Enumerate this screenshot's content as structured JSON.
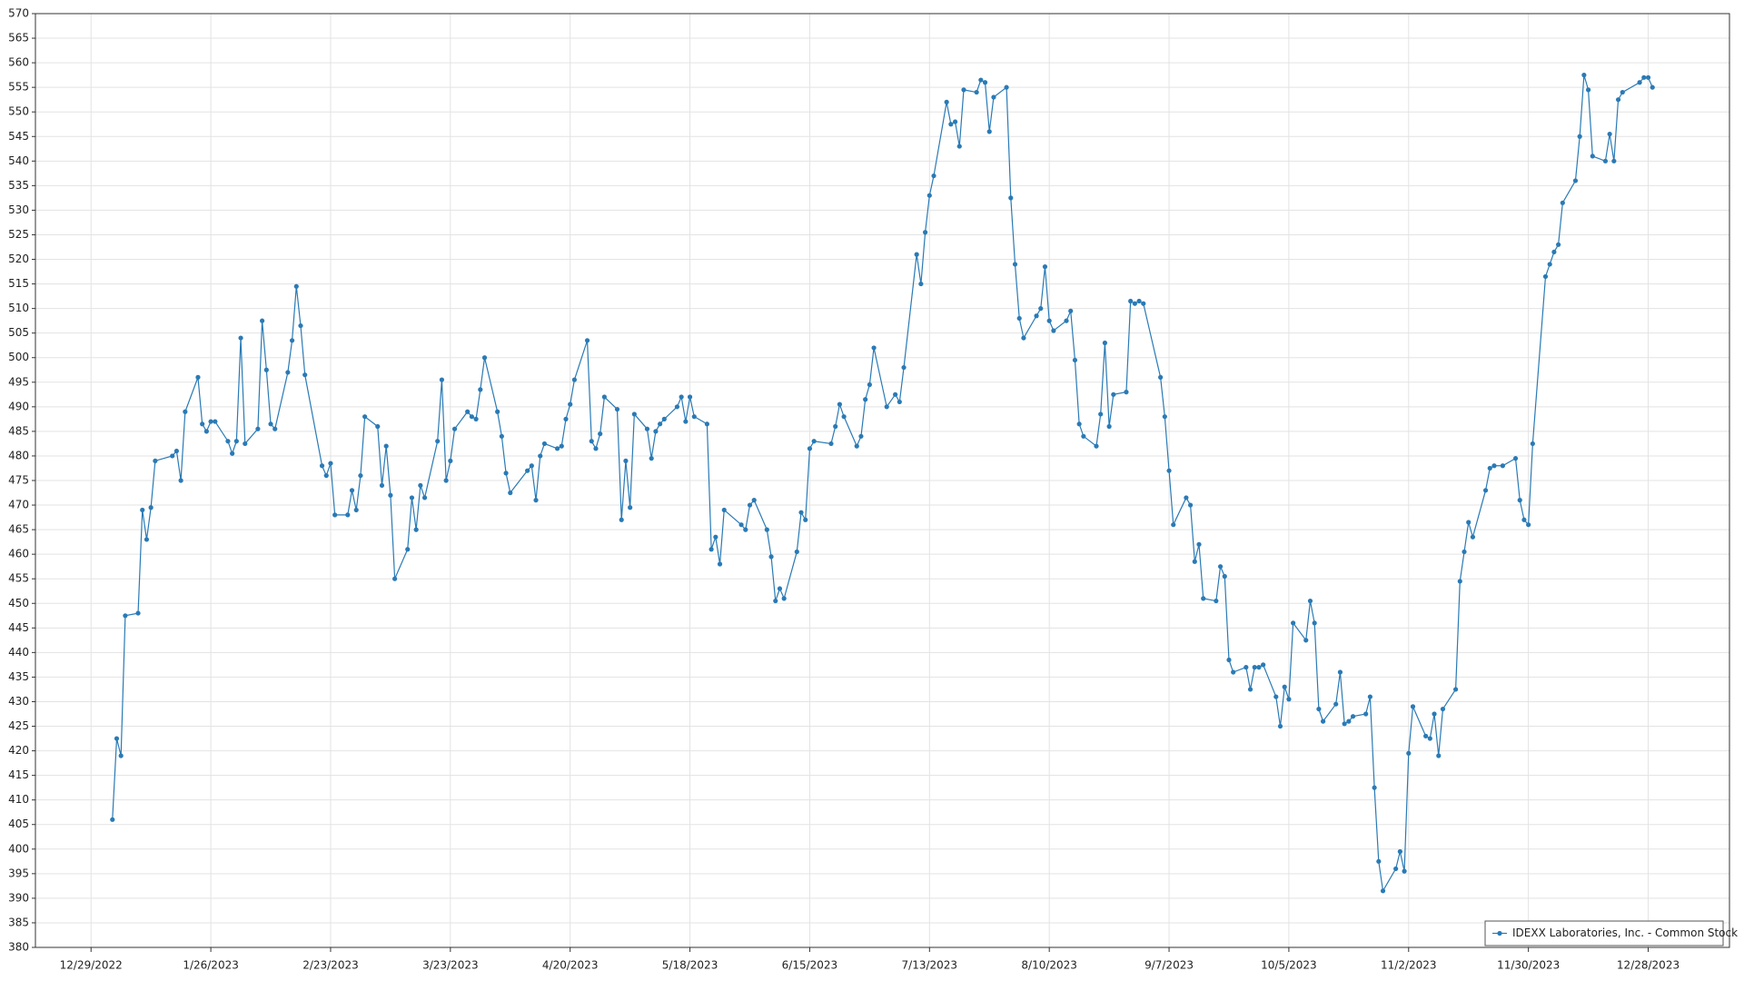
{
  "chart_data": {
    "type": "line",
    "x": [
      "1/3/2023",
      "1/4/2023",
      "1/5/2023",
      "1/6/2023",
      "1/9/2023",
      "1/10/2023",
      "1/11/2023",
      "1/12/2023",
      "1/13/2023",
      "1/17/2023",
      "1/18/2023",
      "1/19/2023",
      "1/20/2023",
      "1/23/2023",
      "1/24/2023",
      "1/25/2023",
      "1/26/2023",
      "1/27/2023",
      "1/30/2023",
      "1/31/2023",
      "2/1/2023",
      "2/2/2023",
      "2/3/2023",
      "2/6/2023",
      "2/7/2023",
      "2/8/2023",
      "2/9/2023",
      "2/10/2023",
      "2/13/2023",
      "2/14/2023",
      "2/15/2023",
      "2/16/2023",
      "2/17/2023",
      "2/21/2023",
      "2/22/2023",
      "2/23/2023",
      "2/24/2023",
      "2/27/2023",
      "2/28/2023",
      "3/1/2023",
      "3/2/2023",
      "3/3/2023",
      "3/6/2023",
      "3/7/2023",
      "3/8/2023",
      "3/9/2023",
      "3/10/2023",
      "3/13/2023",
      "3/14/2023",
      "3/15/2023",
      "3/16/2023",
      "3/17/2023",
      "3/20/2023",
      "3/21/2023",
      "3/22/2023",
      "3/23/2023",
      "3/24/2023",
      "3/27/2023",
      "3/28/2023",
      "3/29/2023",
      "3/30/2023",
      "3/31/2023",
      "4/3/2023",
      "4/4/2023",
      "4/5/2023",
      "4/6/2023",
      "4/10/2023",
      "4/11/2023",
      "4/12/2023",
      "4/13/2023",
      "4/14/2023",
      "4/17/2023",
      "4/18/2023",
      "4/19/2023",
      "4/20/2023",
      "4/21/2023",
      "4/24/2023",
      "4/25/2023",
      "4/26/2023",
      "4/27/2023",
      "4/28/2023",
      "5/1/2023",
      "5/2/2023",
      "5/3/2023",
      "5/4/2023",
      "5/5/2023",
      "5/8/2023",
      "5/9/2023",
      "5/10/2023",
      "5/11/2023",
      "5/12/2023",
      "5/15/2023",
      "5/16/2023",
      "5/17/2023",
      "5/18/2023",
      "5/19/2023",
      "5/22/2023",
      "5/23/2023",
      "5/24/2023",
      "5/25/2023",
      "5/26/2023",
      "5/30/2023",
      "5/31/2023",
      "6/1/2023",
      "6/2/2023",
      "6/5/2023",
      "6/6/2023",
      "6/7/2023",
      "6/8/2023",
      "6/9/2023",
      "6/12/2023",
      "6/13/2023",
      "6/14/2023",
      "6/15/2023",
      "6/16/2023",
      "6/20/2023",
      "6/21/2023",
      "6/22/2023",
      "6/23/2023",
      "6/26/2023",
      "6/27/2023",
      "6/28/2023",
      "6/29/2023",
      "6/30/2023",
      "7/3/2023",
      "7/5/2023",
      "7/6/2023",
      "7/7/2023",
      "7/10/2023",
      "7/11/2023",
      "7/12/2023",
      "7/13/2023",
      "7/14/2023",
      "7/17/2023",
      "7/18/2023",
      "7/19/2023",
      "7/20/2023",
      "7/21/2023",
      "7/24/2023",
      "7/25/2023",
      "7/26/2023",
      "7/27/2023",
      "7/28/2023",
      "7/31/2023",
      "8/1/2023",
      "8/2/2023",
      "8/3/2023",
      "8/4/2023",
      "8/7/2023",
      "8/8/2023",
      "8/9/2023",
      "8/10/2023",
      "8/11/2023",
      "8/14/2023",
      "8/15/2023",
      "8/16/2023",
      "8/17/2023",
      "8/18/2023",
      "8/21/2023",
      "8/22/2023",
      "8/23/2023",
      "8/24/2023",
      "8/25/2023",
      "8/28/2023",
      "8/29/2023",
      "8/30/2023",
      "8/31/2023",
      "9/1/2023",
      "9/5/2023",
      "9/6/2023",
      "9/7/2023",
      "9/8/2023",
      "9/11/2023",
      "9/12/2023",
      "9/13/2023",
      "9/14/2023",
      "9/15/2023",
      "9/18/2023",
      "9/19/2023",
      "9/20/2023",
      "9/21/2023",
      "9/22/2023",
      "9/25/2023",
      "9/26/2023",
      "9/27/2023",
      "9/28/2023",
      "9/29/2023",
      "10/2/2023",
      "10/3/2023",
      "10/4/2023",
      "10/5/2023",
      "10/6/2023",
      "10/9/2023",
      "10/10/2023",
      "10/11/2023",
      "10/12/2023",
      "10/13/2023",
      "10/16/2023",
      "10/17/2023",
      "10/18/2023",
      "10/19/2023",
      "10/20/2023",
      "10/23/2023",
      "10/24/2023",
      "10/25/2023",
      "10/26/2023",
      "10/27/2023",
      "10/30/2023",
      "10/31/2023",
      "11/1/2023",
      "11/2/2023",
      "11/3/2023",
      "11/6/2023",
      "11/7/2023",
      "11/8/2023",
      "11/9/2023",
      "11/10/2023",
      "11/13/2023",
      "11/14/2023",
      "11/15/2023",
      "11/16/2023",
      "11/17/2023",
      "11/20/2023",
      "11/21/2023",
      "11/22/2023",
      "11/24/2023",
      "11/27/2023",
      "11/28/2023",
      "11/29/2023",
      "11/30/2023",
      "12/1/2023",
      "12/4/2023",
      "12/5/2023",
      "12/6/2023",
      "12/7/2023",
      "12/8/2023",
      "12/11/2023",
      "12/12/2023",
      "12/13/2023",
      "12/14/2023",
      "12/15/2023",
      "12/18/2023",
      "12/19/2023",
      "12/20/2023",
      "12/21/2023",
      "12/22/2023",
      "12/26/2023",
      "12/27/2023",
      "12/28/2023",
      "12/29/2023"
    ],
    "series": [
      {
        "name": "IDEXX Laboratories, Inc. - Common Stock",
        "color": "#2a7ab5",
        "values": [
          406,
          422.5,
          419,
          447.5,
          448,
          469,
          463,
          469.5,
          479,
          480,
          481,
          475,
          489,
          496,
          486.5,
          485,
          487,
          487,
          483,
          480.5,
          483,
          504,
          482.5,
          485.5,
          507.5,
          497.5,
          486.5,
          485.5,
          497,
          503.5,
          514.5,
          506.5,
          496.5,
          478,
          476,
          478.5,
          468,
          468,
          473,
          469,
          476,
          488,
          486,
          474,
          482,
          472,
          455,
          461,
          471.5,
          465,
          474,
          471.5,
          483,
          495.5,
          475,
          479,
          485.5,
          489,
          488,
          487.5,
          493.5,
          500,
          489,
          484,
          476.5,
          472.5,
          477,
          478,
          471,
          480,
          482.5,
          481.5,
          482,
          487.5,
          490.5,
          495.5,
          503.5,
          483,
          481.5,
          484.5,
          492,
          489.5,
          467,
          479,
          469.5,
          488.5,
          485.5,
          479.5,
          485,
          486.5,
          487.5,
          490,
          492,
          487,
          492,
          488,
          486.5,
          461,
          463.5,
          458,
          469,
          466,
          465,
          470,
          471,
          465,
          459.5,
          450.5,
          453,
          451,
          460.5,
          468.5,
          467,
          481.5,
          483,
          482.5,
          486,
          490.5,
          488,
          482,
          484,
          491.5,
          494.5,
          502,
          490,
          492.5,
          491,
          498,
          521,
          515,
          525.5,
          533,
          537,
          552,
          547.5,
          548,
          543,
          554.5,
          554,
          556.5,
          556,
          546,
          553,
          555,
          532.5,
          519,
          508,
          504,
          508.5,
          510,
          518.5,
          507.5,
          505.5,
          507.5,
          509.5,
          499.5,
          486.5,
          484,
          482,
          488.5,
          503,
          486,
          492.5,
          493,
          511.5,
          511,
          511.5,
          511,
          496,
          488,
          477,
          466,
          471.5,
          470,
          458.5,
          462,
          451,
          450.5,
          457.5,
          455.5,
          438.5,
          436,
          437,
          432.5,
          437,
          437,
          437.5,
          431,
          425,
          433,
          430.5,
          446,
          442.5,
          450.5,
          446,
          428.5,
          426,
          429.5,
          436,
          425.5,
          426,
          427,
          427.5,
          431,
          412.5,
          397.5,
          391.5,
          396,
          399.5,
          395.5,
          419.5,
          429,
          423,
          422.5,
          427.5,
          419,
          428.5,
          432.5,
          454.5,
          460.5,
          466.5,
          463.5,
          473,
          477.5,
          478,
          478,
          479.5,
          471,
          467,
          466,
          482.5,
          516.5,
          519,
          521.5,
          523,
          531.5,
          536,
          545,
          557.5,
          554.5,
          541,
          540,
          545.5,
          540,
          552.5,
          554,
          556,
          557,
          557,
          555
        ]
      }
    ],
    "xlim": [
      "12/16/2022",
      "1/16/2024"
    ],
    "xticks": [
      "12/29/2022",
      "1/26/2023",
      "2/23/2023",
      "3/23/2023",
      "4/20/2023",
      "5/18/2023",
      "6/15/2023",
      "7/13/2023",
      "8/10/2023",
      "9/7/2023",
      "10/5/2023",
      "11/2/2023",
      "11/30/2023",
      "12/28/2023"
    ],
    "ylim": [
      380,
      570
    ],
    "yticks": [
      380,
      385,
      390,
      395,
      400,
      405,
      410,
      415,
      420,
      425,
      430,
      435,
      440,
      445,
      450,
      455,
      460,
      465,
      470,
      475,
      480,
      485,
      490,
      495,
      500,
      505,
      510,
      515,
      520,
      525,
      530,
      535,
      540,
      545,
      550,
      555,
      560,
      565,
      570
    ],
    "grid": true,
    "legend": "bottom-right"
  }
}
